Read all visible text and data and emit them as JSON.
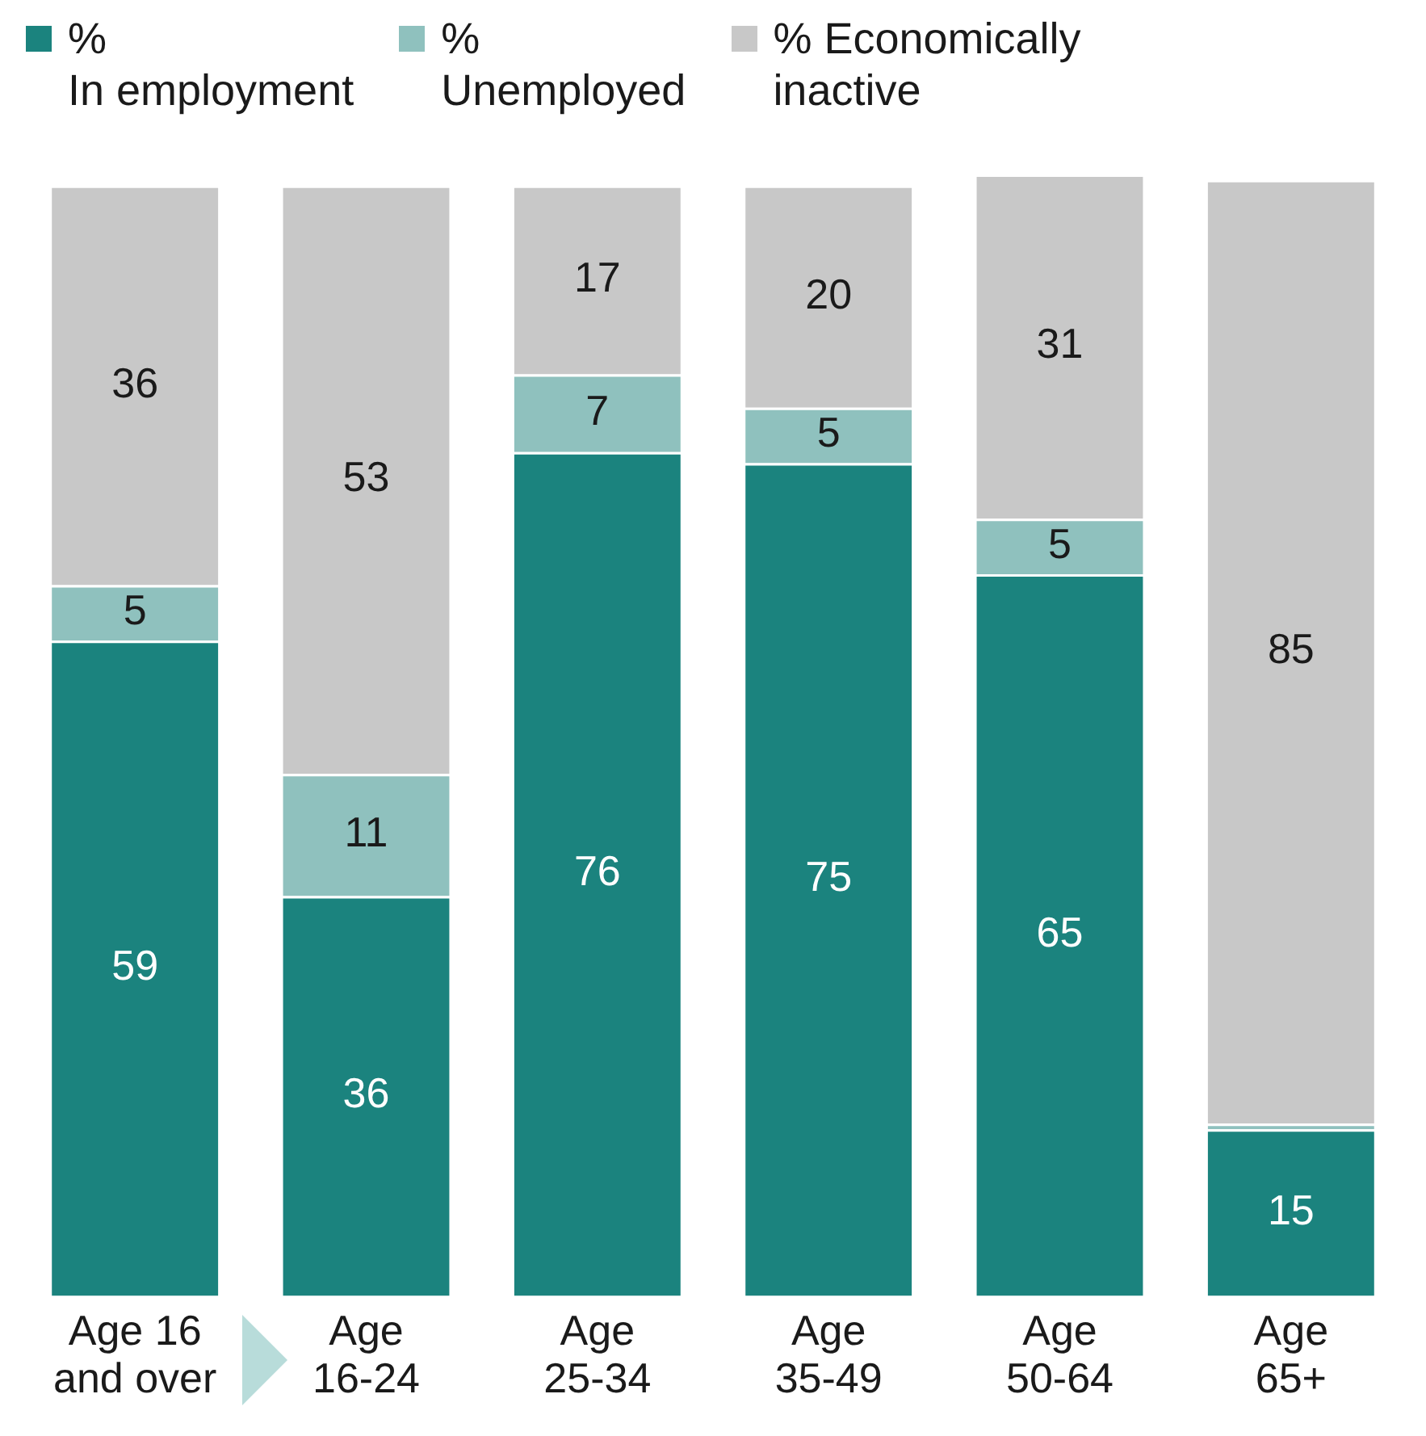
{
  "chart_data": {
    "type": "bar",
    "stacked": true,
    "legend": "top",
    "ylim": [
      0,
      101
    ],
    "tick_labels": "x",
    "grid": false,
    "categories": [
      "Age 16\nand over",
      "Age\n16-24",
      "Age\n25-34",
      "Age\n35-49",
      "Age\n50-64",
      "Age\n65+"
    ],
    "series": [
      {
        "name": "%\nIn employment",
        "color": "#1b837e",
        "values": [
          59,
          36,
          76,
          75,
          65,
          15
        ],
        "value_labels": [
          "59",
          "36",
          "76",
          "75",
          "65",
          "15"
        ]
      },
      {
        "name": "%\nUnemployed",
        "color": "#8fc1be",
        "values": [
          5,
          11,
          7,
          5,
          5,
          0.5
        ],
        "value_labels": [
          "5",
          "11",
          "7",
          "5",
          "5",
          null
        ]
      },
      {
        "name": "% Economically\ninactive",
        "color": "#c8c8c8",
        "values": [
          36,
          53,
          17,
          20,
          31,
          85
        ],
        "value_labels": [
          "36",
          "53",
          "17",
          "20",
          "31",
          "85"
        ]
      }
    ]
  }
}
